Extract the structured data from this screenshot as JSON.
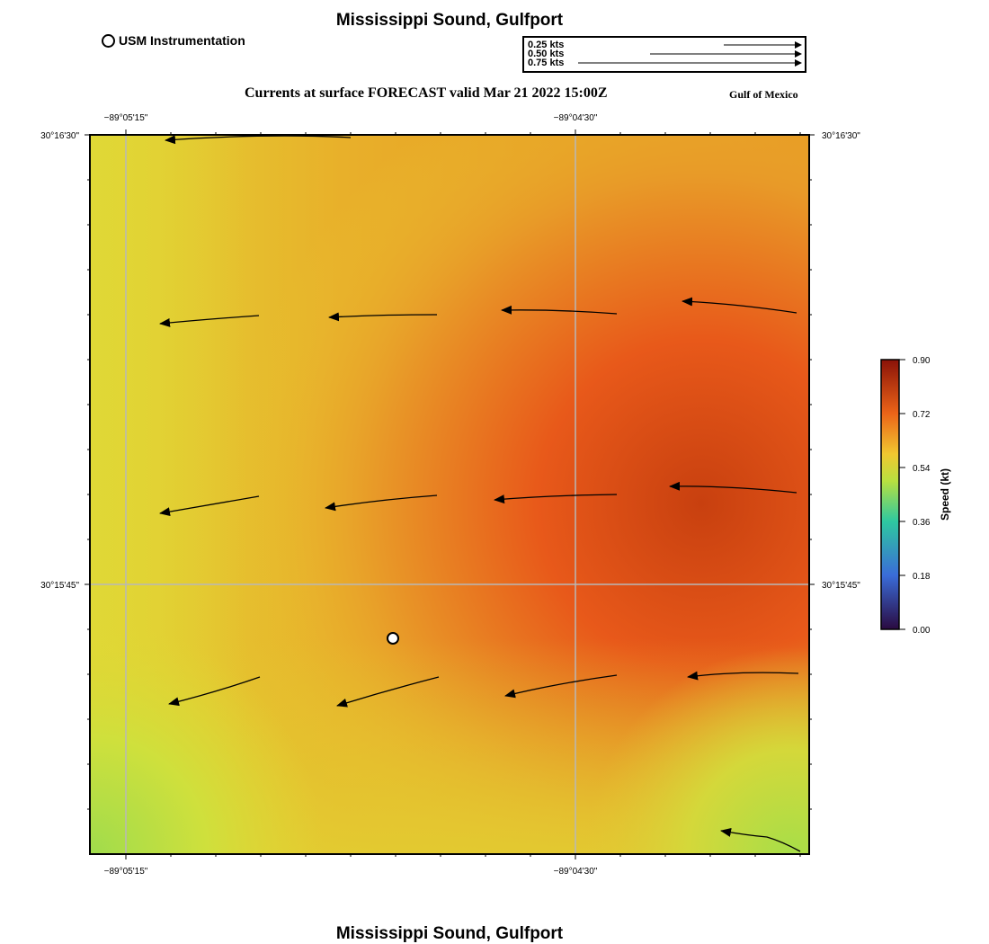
{
  "title": "Mississippi Sound, Gulfport",
  "bottom_title": "Mississippi Sound, Gulfport",
  "subtitle": "Currents at surface FORECAST valid Mar 21 2022 15:00Z",
  "region": "Gulf of Mexico",
  "legend": {
    "station_label": "USM Instrumentation"
  },
  "vector_scale": [
    {
      "label": "0.25 kts",
      "speed": 0.25
    },
    {
      "label": "0.50 kts",
      "speed": 0.5
    },
    {
      "label": "0.75 kts",
      "speed": 0.75
    }
  ],
  "axes": {
    "lon_ticks": [
      {
        "label": "−89°05'15\""
      },
      {
        "label": "−89°04'30\""
      }
    ],
    "lat_ticks": [
      {
        "label": "30°16'30\""
      },
      {
        "label": "30°15'45\""
      }
    ]
  },
  "colorbar": {
    "title": "Speed (kt)",
    "ticks": [
      "0.90",
      "0.72",
      "0.54",
      "0.36",
      "0.18",
      "0.00"
    ],
    "min": 0.0,
    "max": 0.9
  },
  "colors": {
    "field_low": "#a8dc4a",
    "field_mid": "#e2cf32",
    "field_high": "#e8591a",
    "field_max": "#c8400f"
  }
}
